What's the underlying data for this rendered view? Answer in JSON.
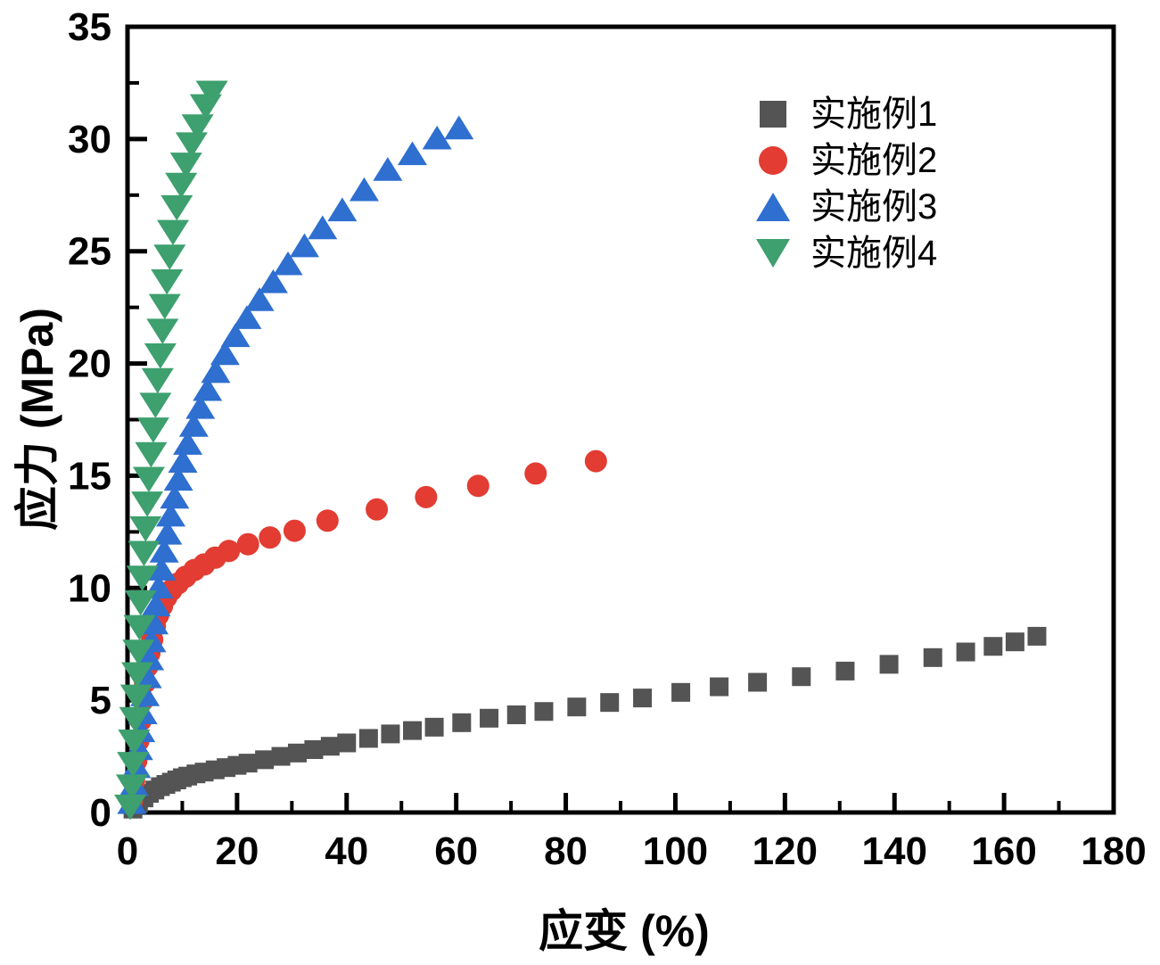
{
  "figure": {
    "background_color": "#ffffff",
    "frame_color": "#000000",
    "text_color": "#000000"
  },
  "chart_data": {
    "type": "scatter",
    "title": "",
    "xlabel": "应变 (%)",
    "ylabel": "应力 (MPa)",
    "xlim": [
      0,
      180
    ],
    "ylim": [
      0,
      35
    ],
    "x_major_ticks": [
      0,
      20,
      40,
      60,
      80,
      100,
      120,
      140,
      160,
      180
    ],
    "x_tick_labels": [
      "0",
      "20",
      "40",
      "60",
      "80",
      "100",
      "120",
      "140",
      "160",
      "180"
    ],
    "x_minor_ticks": [
      10,
      30,
      50,
      70,
      90,
      110,
      130,
      150,
      170
    ],
    "y_major_ticks": [
      0,
      5,
      10,
      15,
      20,
      25,
      30,
      35
    ],
    "y_tick_labels": [
      "0",
      "5",
      "10",
      "15",
      "20",
      "25",
      "30",
      "35"
    ],
    "y_minor_ticks": [
      2.5,
      7.5,
      12.5,
      17.5,
      22.5,
      27.5,
      32.5
    ],
    "grid": false,
    "legend_position": "upper-right",
    "series": [
      {
        "name": "实施例1",
        "marker": "square",
        "color": "#545454",
        "points": [
          [
            1,
            0.15
          ],
          [
            2,
            0.4
          ],
          [
            3,
            0.65
          ],
          [
            4,
            0.85
          ],
          [
            5,
            1.0
          ],
          [
            6,
            1.15
          ],
          [
            7,
            1.25
          ],
          [
            8,
            1.35
          ],
          [
            9,
            1.45
          ],
          [
            10,
            1.55
          ],
          [
            11,
            1.62
          ],
          [
            12.5,
            1.72
          ],
          [
            14,
            1.8
          ],
          [
            16,
            1.9
          ],
          [
            18,
            2.0
          ],
          [
            20,
            2.1
          ],
          [
            22,
            2.2
          ],
          [
            25,
            2.35
          ],
          [
            28,
            2.5
          ],
          [
            31,
            2.65
          ],
          [
            34,
            2.8
          ],
          [
            37,
            2.95
          ],
          [
            40,
            3.1
          ],
          [
            44,
            3.3
          ],
          [
            48,
            3.5
          ],
          [
            52,
            3.65
          ],
          [
            56,
            3.8
          ],
          [
            61,
            4.0
          ],
          [
            66,
            4.2
          ],
          [
            71,
            4.35
          ],
          [
            76,
            4.5
          ],
          [
            82,
            4.7
          ],
          [
            88,
            4.9
          ],
          [
            94,
            5.1
          ],
          [
            101,
            5.35
          ],
          [
            108,
            5.6
          ],
          [
            115,
            5.8
          ],
          [
            123,
            6.05
          ],
          [
            131,
            6.3
          ],
          [
            139,
            6.6
          ],
          [
            147,
            6.9
          ],
          [
            153,
            7.15
          ],
          [
            158,
            7.4
          ],
          [
            162,
            7.6
          ],
          [
            166,
            7.85
          ]
        ]
      },
      {
        "name": "实施例2",
        "marker": "circle",
        "color": "#e23c33",
        "points": [
          [
            0.8,
            0.5
          ],
          [
            1.2,
            1.4
          ],
          [
            1.6,
            2.3
          ],
          [
            2,
            3.2
          ],
          [
            2.4,
            4.1
          ],
          [
            2.8,
            5.0
          ],
          [
            3.2,
            5.8
          ],
          [
            3.6,
            6.5
          ],
          [
            4,
            7.1
          ],
          [
            4.5,
            7.7
          ],
          [
            5,
            8.3
          ],
          [
            5.6,
            8.8
          ],
          [
            6.3,
            9.2
          ],
          [
            7.1,
            9.6
          ],
          [
            8,
            9.9
          ],
          [
            9.2,
            10.2
          ],
          [
            10.6,
            10.5
          ],
          [
            12.2,
            10.8
          ],
          [
            14,
            11.05
          ],
          [
            16,
            11.35
          ],
          [
            18.5,
            11.65
          ],
          [
            22,
            11.95
          ],
          [
            26,
            12.25
          ],
          [
            30.5,
            12.55
          ],
          [
            36.5,
            13.0
          ],
          [
            45.5,
            13.5
          ],
          [
            54.5,
            14.05
          ],
          [
            64,
            14.55
          ],
          [
            74.5,
            15.1
          ],
          [
            85.5,
            15.65
          ]
        ]
      },
      {
        "name": "实施例3",
        "marker": "triangle-up",
        "color": "#2e6fd0",
        "points": [
          [
            0.8,
            0.4
          ],
          [
            1.2,
            1.2
          ],
          [
            1.6,
            2.0
          ],
          [
            2,
            2.8
          ],
          [
            2.4,
            3.6
          ],
          [
            2.8,
            4.4
          ],
          [
            3.2,
            5.2
          ],
          [
            3.6,
            6.0
          ],
          [
            4,
            6.8
          ],
          [
            4.4,
            7.6
          ],
          [
            4.8,
            8.4
          ],
          [
            5.2,
            9.2
          ],
          [
            5.7,
            10.0
          ],
          [
            6.2,
            10.8
          ],
          [
            6.7,
            11.6
          ],
          [
            7.3,
            12.4
          ],
          [
            7.9,
            13.2
          ],
          [
            8.6,
            14.0
          ],
          [
            9.3,
            14.8
          ],
          [
            10.1,
            15.6
          ],
          [
            11,
            16.4
          ],
          [
            12.1,
            17.2
          ],
          [
            13.3,
            18.0
          ],
          [
            14.6,
            18.8
          ],
          [
            16.1,
            19.6
          ],
          [
            17.8,
            20.4
          ],
          [
            19.7,
            21.2
          ],
          [
            21.8,
            22.0
          ],
          [
            24.1,
            22.8
          ],
          [
            26.6,
            23.6
          ],
          [
            29.3,
            24.4
          ],
          [
            32.3,
            25.2
          ],
          [
            35.6,
            26.0
          ],
          [
            39.2,
            26.8
          ],
          [
            43.2,
            27.7
          ],
          [
            47.5,
            28.6
          ],
          [
            52,
            29.3
          ],
          [
            56.5,
            30.0
          ],
          [
            60.5,
            30.45
          ]
        ]
      },
      {
        "name": "实施例4",
        "marker": "triangle-down",
        "color": "#3da06e",
        "points": [
          [
            0.5,
            0.3
          ],
          [
            0.8,
            1.2
          ],
          [
            1.0,
            2.2
          ],
          [
            1.2,
            3.2
          ],
          [
            1.4,
            4.2
          ],
          [
            1.6,
            5.2
          ],
          [
            1.8,
            6.2
          ],
          [
            2.0,
            7.2
          ],
          [
            2.2,
            8.3
          ],
          [
            2.4,
            9.4
          ],
          [
            2.7,
            10.5
          ],
          [
            3.0,
            11.6
          ],
          [
            3.3,
            12.7
          ],
          [
            3.6,
            13.8
          ],
          [
            3.9,
            14.9
          ],
          [
            4.3,
            16.0
          ],
          [
            4.7,
            17.1
          ],
          [
            5.1,
            18.2
          ],
          [
            5.5,
            19.3
          ],
          [
            6.0,
            20.4
          ],
          [
            6.4,
            21.5
          ],
          [
            6.8,
            22.6
          ],
          [
            7.2,
            23.7
          ],
          [
            7.7,
            24.8
          ],
          [
            8.3,
            25.9
          ],
          [
            9.0,
            27.0
          ],
          [
            9.8,
            28.0
          ],
          [
            10.7,
            28.9
          ],
          [
            11.7,
            29.8
          ],
          [
            12.8,
            30.6
          ],
          [
            14.3,
            31.5
          ],
          [
            15.4,
            32.1
          ]
        ]
      }
    ]
  }
}
